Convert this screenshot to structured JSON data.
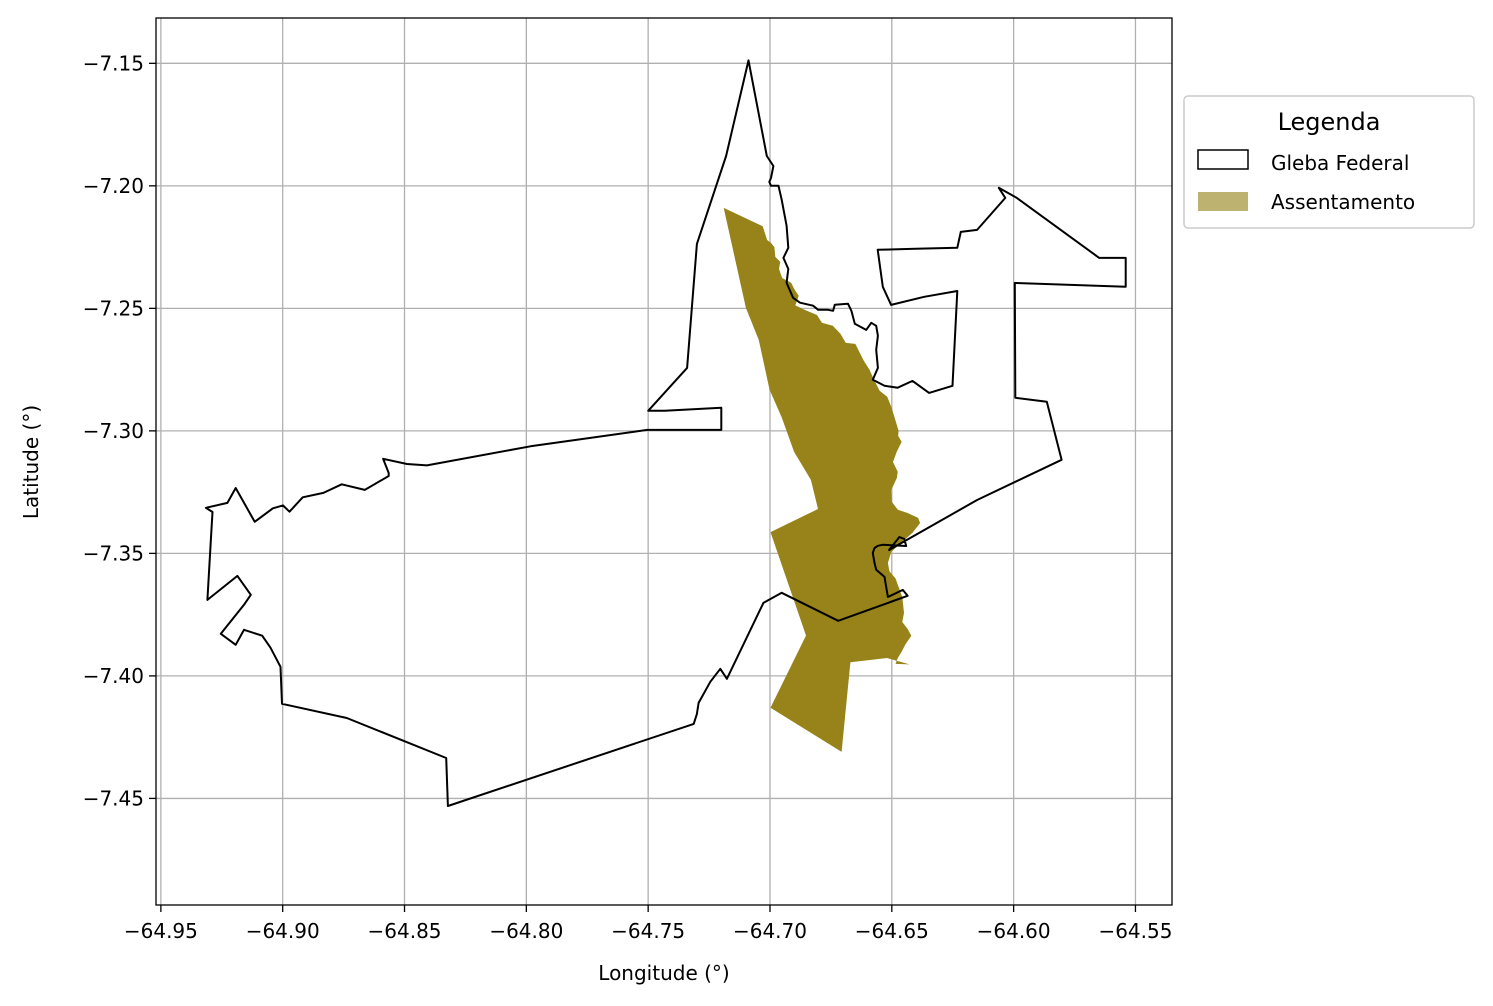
{
  "chart_data": {
    "type": "map",
    "xlabel": "Longitude (°)",
    "ylabel": "Latitude (°)",
    "xlim": [
      -64.952,
      -64.535
    ],
    "ylim": [
      -7.4935,
      -7.1315
    ],
    "x_ticks": [
      {
        "value": -64.95,
        "label": "−64.95"
      },
      {
        "value": -64.9,
        "label": "−64.90"
      },
      {
        "value": -64.85,
        "label": "−64.85"
      },
      {
        "value": -64.8,
        "label": "−64.80"
      },
      {
        "value": -64.75,
        "label": "−64.75"
      },
      {
        "value": -64.7,
        "label": "−64.70"
      },
      {
        "value": -64.65,
        "label": "−64.65"
      },
      {
        "value": -64.6,
        "label": "−64.60"
      },
      {
        "value": -64.55,
        "label": "−64.55"
      }
    ],
    "y_ticks": [
      {
        "value": -7.15,
        "label": "−7.15"
      },
      {
        "value": -7.2,
        "label": "−7.20"
      },
      {
        "value": -7.25,
        "label": "−7.25"
      },
      {
        "value": -7.3,
        "label": "−7.30"
      },
      {
        "value": -7.35,
        "label": "−7.35"
      },
      {
        "value": -7.4,
        "label": "−7.40"
      },
      {
        "value": -7.45,
        "label": "−7.45"
      }
    ],
    "grid": true,
    "legend": {
      "title": "Legenda",
      "placement": "outside-top-right",
      "entries": [
        {
          "label": "Gleba Federal",
          "style": "outline",
          "edge_color": "#000000",
          "fill_color": "#ffffff"
        },
        {
          "label": "Assentamento",
          "style": "fill",
          "fill_color": "#bdb270"
        }
      ]
    },
    "layers": [
      {
        "name": "Gleba Federal",
        "fill": "none",
        "stroke": "#000000",
        "coordinates": [
          [
            -64.7088,
            -7.1488
          ],
          [
            -64.7013,
            -7.1878
          ],
          [
            -64.6986,
            -7.1919
          ],
          [
            -64.6996,
            -7.1968
          ],
          [
            -64.7003,
            -7.1984
          ],
          [
            -64.6996,
            -7.2
          ],
          [
            -64.6965,
            -7.2
          ],
          [
            -64.6952,
            -7.2057
          ],
          [
            -64.6932,
            -7.2163
          ],
          [
            -64.6925,
            -7.2253
          ],
          [
            -64.6945,
            -7.2294
          ],
          [
            -64.6925,
            -7.2339
          ],
          [
            -64.6932,
            -7.2396
          ],
          [
            -64.6905,
            -7.2457
          ],
          [
            -64.6877,
            -7.2477
          ],
          [
            -64.6823,
            -7.2489
          ],
          [
            -64.6802,
            -7.2506
          ],
          [
            -64.6762,
            -7.2506
          ],
          [
            -64.6741,
            -7.251
          ],
          [
            -64.6734,
            -7.2485
          ],
          [
            -64.668,
            -7.2481
          ],
          [
            -64.6666,
            -7.251
          ],
          [
            -64.6652,
            -7.2563
          ],
          [
            -64.6605,
            -7.2588
          ],
          [
            -64.6584,
            -7.2559
          ],
          [
            -64.6564,
            -7.2571
          ],
          [
            -64.6557,
            -7.2612
          ],
          [
            -64.6564,
            -7.2669
          ],
          [
            -64.6557,
            -7.2743
          ],
          [
            -64.6578,
            -7.2791
          ],
          [
            -64.653,
            -7.2816
          ],
          [
            -64.6476,
            -7.2824
          ],
          [
            -64.6415,
            -7.2796
          ],
          [
            -64.6347,
            -7.2845
          ],
          [
            -64.6251,
            -7.2816
          ],
          [
            -64.6231,
            -7.2429
          ],
          [
            -64.6367,
            -7.2453
          ],
          [
            -64.6503,
            -7.2486
          ],
          [
            -64.6537,
            -7.2412
          ],
          [
            -64.6558,
            -7.2261
          ],
          [
            -64.6401,
            -7.2257
          ],
          [
            -64.6231,
            -7.2253
          ],
          [
            -64.6217,
            -7.2188
          ],
          [
            -64.615,
            -7.218
          ],
          [
            -64.6034,
            -7.2049
          ],
          [
            -64.6061,
            -7.2008
          ],
          [
            -64.5987,
            -7.2049
          ],
          [
            -64.5649,
            -7.2294
          ],
          [
            -64.554,
            -7.2294
          ],
          [
            -64.554,
            -7.2412
          ],
          [
            -64.5995,
            -7.2396
          ],
          [
            -64.5993,
            -7.2865
          ],
          [
            -64.5864,
            -7.2881
          ],
          [
            -64.5803,
            -7.3118
          ],
          [
            -64.615,
            -7.3282
          ],
          [
            -64.6511,
            -7.3486
          ],
          [
            -64.6469,
            -7.3433
          ],
          [
            -64.6449,
            -7.3441
          ],
          [
            -64.6441,
            -7.347
          ],
          [
            -64.6538,
            -7.3465
          ],
          [
            -64.6557,
            -7.3469
          ],
          [
            -64.6571,
            -7.3478
          ],
          [
            -64.6578,
            -7.3498
          ],
          [
            -64.6571,
            -7.3539
          ],
          [
            -64.6564,
            -7.3567
          ],
          [
            -64.653,
            -7.3596
          ],
          [
            -64.6516,
            -7.3678
          ],
          [
            -64.6455,
            -7.3649
          ],
          [
            -64.6435,
            -7.3673
          ],
          [
            -64.672,
            -7.3775
          ],
          [
            -64.6952,
            -7.3661
          ],
          [
            -64.7027,
            -7.3702
          ],
          [
            -64.7177,
            -7.4012
          ],
          [
            -64.7204,
            -7.3971
          ],
          [
            -64.7245,
            -7.4024
          ],
          [
            -64.7293,
            -7.411
          ],
          [
            -64.73,
            -7.4155
          ],
          [
            -64.7313,
            -7.4196
          ],
          [
            -64.8322,
            -7.4531
          ],
          [
            -64.8329,
            -7.4335
          ],
          [
            -64.8737,
            -7.4172
          ],
          [
            -64.9003,
            -7.4114
          ],
          [
            -64.9009,
            -7.3963
          ],
          [
            -64.905,
            -7.3885
          ],
          [
            -64.9084,
            -7.3836
          ],
          [
            -64.9159,
            -7.3812
          ],
          [
            -64.9193,
            -7.3873
          ],
          [
            -64.9254,
            -7.3828
          ],
          [
            -64.9159,
            -7.371
          ],
          [
            -64.9131,
            -7.3669
          ],
          [
            -64.9186,
            -7.3592
          ],
          [
            -64.9309,
            -7.369
          ],
          [
            -64.9295,
            -7.3449
          ],
          [
            -64.9288,
            -7.3331
          ],
          [
            -64.9315,
            -7.3314
          ],
          [
            -64.9227,
            -7.3294
          ],
          [
            -64.9193,
            -7.3233
          ],
          [
            -64.9115,
            -7.3371
          ],
          [
            -64.904,
            -7.3316
          ],
          [
            -64.8999,
            -7.3304
          ],
          [
            -64.8972,
            -7.333
          ],
          [
            -64.8918,
            -7.3271
          ],
          [
            -64.8833,
            -7.3253
          ],
          [
            -64.8758,
            -7.3218
          ],
          [
            -64.8663,
            -7.3241
          ],
          [
            -64.8565,
            -7.3184
          ],
          [
            -64.8565,
            -7.3172
          ],
          [
            -64.8588,
            -7.3114
          ],
          [
            -64.849,
            -7.3135
          ],
          [
            -64.8408,
            -7.3141
          ],
          [
            -64.7983,
            -7.3063
          ],
          [
            -64.7504,
            -7.2996
          ],
          [
            -64.72,
            -7.2996
          ],
          [
            -64.72,
            -7.2906
          ],
          [
            -64.7432,
            -7.2918
          ],
          [
            -64.75,
            -7.2918
          ],
          [
            -64.734,
            -7.2743
          ],
          [
            -64.73,
            -7.2237
          ],
          [
            -64.718,
            -7.1878
          ],
          [
            -64.7088,
            -7.1488
          ]
        ]
      },
      {
        "name": "Assentamento",
        "fill": "#978319",
        "stroke": "none",
        "coordinates": [
          [
            -64.719,
            -7.209
          ],
          [
            -64.703,
            -7.2165
          ],
          [
            -64.7012,
            -7.2221
          ],
          [
            -64.6996,
            -7.2233
          ],
          [
            -64.6982,
            -7.2251
          ],
          [
            -64.6978,
            -7.229
          ],
          [
            -64.6958,
            -7.231
          ],
          [
            -64.6963,
            -7.2339
          ],
          [
            -64.695,
            -7.2376
          ],
          [
            -64.6913,
            -7.2396
          ],
          [
            -64.6901,
            -7.242
          ],
          [
            -64.6882,
            -7.2449
          ],
          [
            -64.6896,
            -7.2488
          ],
          [
            -64.6854,
            -7.2508
          ],
          [
            -64.6807,
            -7.2527
          ],
          [
            -64.6787,
            -7.2559
          ],
          [
            -64.6742,
            -7.2571
          ],
          [
            -64.6711,
            -7.2604
          ],
          [
            -64.6689,
            -7.2641
          ],
          [
            -64.665,
            -7.2645
          ],
          [
            -64.6615,
            -7.2714
          ],
          [
            -64.6591,
            -7.2751
          ],
          [
            -64.6574,
            -7.279
          ],
          [
            -64.655,
            -7.2836
          ],
          [
            -64.6519,
            -7.2861
          ],
          [
            -64.6501,
            -7.2905
          ],
          [
            -64.6472,
            -7.3
          ],
          [
            -64.6474,
            -7.302
          ],
          [
            -64.646,
            -7.3045
          ],
          [
            -64.648,
            -7.3086
          ],
          [
            -64.6495,
            -7.3127
          ],
          [
            -64.6476,
            -7.3167
          ],
          [
            -64.6479,
            -7.3192
          ],
          [
            -64.6502,
            -7.3241
          ],
          [
            -64.65,
            -7.329
          ],
          [
            -64.6475,
            -7.3322
          ],
          [
            -64.6435,
            -7.3335
          ],
          [
            -64.6392,
            -7.3355
          ],
          [
            -64.6384,
            -7.3376
          ],
          [
            -64.6415,
            -7.3416
          ],
          [
            -64.6475,
            -7.3469
          ],
          [
            -64.6502,
            -7.3494
          ],
          [
            -64.6516,
            -7.3539
          ],
          [
            -64.651,
            -7.3573
          ],
          [
            -64.6485,
            -7.3602
          ],
          [
            -64.6471,
            -7.3641
          ],
          [
            -64.6457,
            -7.3678
          ],
          [
            -64.645,
            -7.3743
          ],
          [
            -64.6457,
            -7.378
          ],
          [
            -64.6435,
            -7.3808
          ],
          [
            -64.642,
            -7.3836
          ],
          [
            -64.6445,
            -7.3873
          ],
          [
            -64.646,
            -7.3902
          ],
          [
            -64.6475,
            -7.3926
          ],
          [
            -64.6485,
            -7.3951
          ],
          [
            -64.6427,
            -7.3953
          ],
          [
            -64.652,
            -7.3927
          ],
          [
            -64.659,
            -7.3935
          ],
          [
            -64.667,
            -7.3944
          ],
          [
            -64.6706,
            -7.431
          ],
          [
            -64.6998,
            -7.413
          ],
          [
            -64.6852,
            -7.3835
          ],
          [
            -64.6998,
            -7.3413
          ],
          [
            -64.6803,
            -7.3319
          ],
          [
            -64.6832,
            -7.32
          ],
          [
            -64.6901,
            -7.3086
          ],
          [
            -64.6952,
            -7.2945
          ],
          [
            -64.7002,
            -7.2831
          ],
          [
            -64.7046,
            -7.2629
          ],
          [
            -64.7099,
            -7.2498
          ],
          [
            -64.719,
            -7.209
          ]
        ]
      }
    ]
  }
}
